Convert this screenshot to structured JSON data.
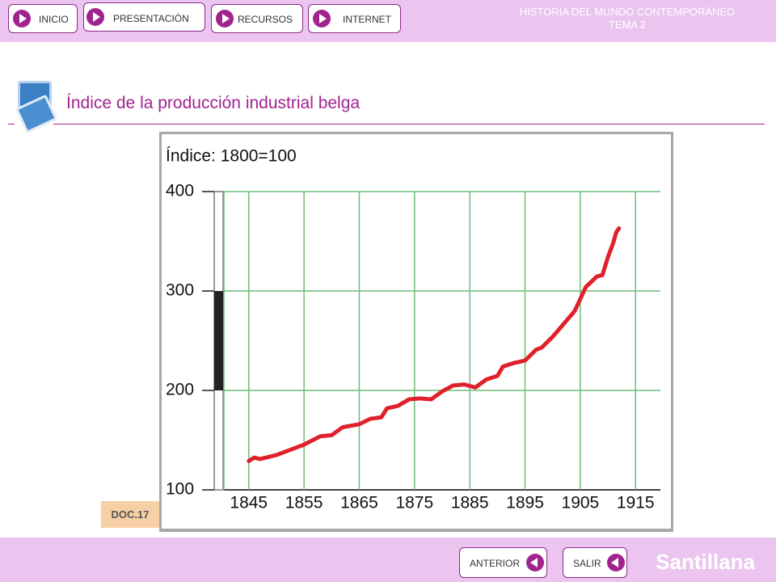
{
  "nav": {
    "buttons": [
      "INICIO",
      "PRESENTACIÓN",
      "RECURSOS",
      "INTERNET"
    ]
  },
  "header": {
    "title": "HISTORIA DEL MUNDO CONTEMPORÁNEO",
    "subtitle": "TEMA 2"
  },
  "page_title": "Índice de la producción industrial belga",
  "doc_label": "DOC.17",
  "footer": {
    "buttons": [
      "ANTERIOR",
      "SALIR"
    ],
    "brand": "Santillana"
  },
  "chart_data": {
    "type": "line",
    "title": "Índice: 1800=100",
    "x": [
      1845,
      1846,
      1847,
      1850,
      1855,
      1858,
      1860,
      1862,
      1865,
      1867,
      1869,
      1870,
      1872,
      1874,
      1876,
      1878,
      1880,
      1882,
      1884,
      1886,
      1888,
      1890,
      1891,
      1893,
      1895,
      1897,
      1898,
      1900,
      1902,
      1904,
      1906,
      1908,
      1909,
      1910,
      1911,
      1911.5,
      1912
    ],
    "values": [
      129,
      132.5,
      131,
      135,
      145.5,
      154,
      155,
      163,
      166,
      171.5,
      173,
      182,
      184.5,
      191,
      192,
      191,
      199,
      205,
      206,
      203,
      211,
      214.6,
      224,
      227.6,
      230,
      241,
      243,
      254,
      267,
      280,
      304,
      314.6,
      316,
      334,
      349,
      359,
      363
    ],
    "color": "#e0202a",
    "xlim": [
      1840.5,
      1919.5
    ],
    "ylim": [
      100,
      400
    ],
    "xticks": [
      1845,
      1855,
      1865,
      1875,
      1885,
      1895,
      1905,
      1915
    ],
    "yticks": [
      100,
      200,
      300,
      400
    ],
    "grid": true
  }
}
